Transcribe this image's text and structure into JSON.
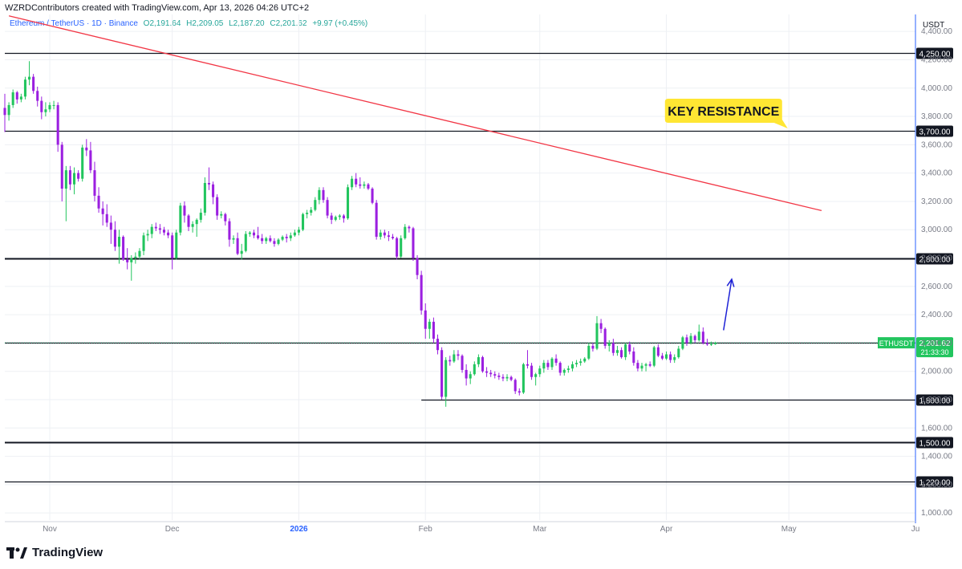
{
  "header": {
    "credit": "WZRDContributors created with TradingView.com, Apr 13, 2026 04:26 UTC+2"
  },
  "symbol": {
    "name": "Ethereum / TetherUS · 1D · Binance",
    "open": "O2,191.64",
    "high": "H2,209.05",
    "low": "L2,187.20",
    "close": "C2,201.62",
    "change": "+9.97 (+0.45%)"
  },
  "logo_text": "TradingView",
  "colors": {
    "bullish": "#22c55e",
    "bearish": "#9b1fe0",
    "trendline": "#f23645",
    "arrow": "#1e22d6",
    "callout_bg": "#ffe633",
    "price_tag": "#22c55e"
  },
  "chart_data": {
    "type": "candlestick",
    "y_unit": "USDT",
    "ylim": [
      950,
      4520
    ],
    "y_ticks": [
      "1,000.00",
      "1,200.00",
      "1,400.00",
      "1,600.00",
      "1,800.00",
      "2,000.00",
      "2,200.00",
      "2,400.00",
      "2,600.00",
      "2,800.00",
      "3,000.00",
      "3,200.00",
      "3,400.00",
      "3,600.00",
      "3,800.00",
      "4,000.00",
      "4,200.00",
      "4,400.00"
    ],
    "x_ticks": [
      {
        "label": "Nov",
        "date": "2025-11-01",
        "bold": false
      },
      {
        "label": "Dec",
        "date": "2025-12-01",
        "bold": false
      },
      {
        "label": "2026",
        "date": "2026-01-01",
        "bold": true
      },
      {
        "label": "Feb",
        "date": "2026-02-01",
        "bold": false
      },
      {
        "label": "Mar",
        "date": "2026-03-01",
        "bold": false
      },
      {
        "label": "Apr",
        "date": "2026-04-01",
        "bold": false
      },
      {
        "label": "May",
        "date": "2026-05-01",
        "bold": false
      },
      {
        "label": "Ju",
        "date": "2026-06-01",
        "bold": false
      }
    ],
    "x_range": [
      "2025-10-21",
      "2026-06-01"
    ],
    "levels": [
      {
        "value": 4250,
        "label": "4,250.00",
        "start": "2025-10-21"
      },
      {
        "value": 3700,
        "label": "3,700.00",
        "start": "2025-10-21"
      },
      {
        "value": 2800,
        "label": "2,800.00",
        "start": "2025-10-21"
      },
      {
        "value": 2200,
        "label": "2,200.00",
        "start": "2025-10-21"
      },
      {
        "value": 1800,
        "label": "1,800.00",
        "start": "2026-01-31"
      },
      {
        "value": 1500,
        "label": "1,500.00",
        "start": "2025-10-21"
      },
      {
        "value": 1220,
        "label": "1,220.00",
        "start": "2025-10-21"
      }
    ],
    "trendline": {
      "from": {
        "date": "2025-10-22",
        "value": 4510
      },
      "to": {
        "date": "2026-05-09",
        "value": 3135
      }
    },
    "arrow": {
      "from": {
        "date": "2026-04-15",
        "value": 2290
      },
      "to": {
        "date": "2026-04-17",
        "value": 2650
      }
    },
    "annotation": {
      "text": "KEY RESISTANCE",
      "date": "2026-04-15",
      "value": 3840
    },
    "last_price": {
      "symbol": "ETHUSDT",
      "price": "2,201.62",
      "countdown": "21:33:30",
      "value": 2201.62
    },
    "candles": [
      [
        "2025-10-21",
        3860,
        3960,
        3690,
        3810
      ],
      [
        "2025-10-22",
        3810,
        3900,
        3770,
        3880
      ],
      [
        "2025-10-23",
        3880,
        3990,
        3860,
        3970
      ],
      [
        "2025-10-24",
        3970,
        3980,
        3890,
        3920
      ],
      [
        "2025-10-25",
        3920,
        3960,
        3900,
        3940
      ],
      [
        "2025-10-26",
        3940,
        4080,
        3920,
        4060
      ],
      [
        "2025-10-27",
        4060,
        4190,
        4020,
        4080
      ],
      [
        "2025-10-28",
        4080,
        4100,
        3960,
        3980
      ],
      [
        "2025-10-29",
        3980,
        4010,
        3870,
        3910
      ],
      [
        "2025-10-30",
        3910,
        3940,
        3780,
        3830
      ],
      [
        "2025-10-31",
        3830,
        3900,
        3800,
        3850
      ],
      [
        "2025-11-01",
        3850,
        3900,
        3830,
        3880
      ],
      [
        "2025-11-02",
        3880,
        3910,
        3850,
        3880
      ],
      [
        "2025-11-03",
        3880,
        3900,
        3550,
        3600
      ],
      [
        "2025-11-04",
        3600,
        3620,
        3200,
        3290
      ],
      [
        "2025-11-05",
        3290,
        3450,
        3060,
        3420
      ],
      [
        "2025-11-06",
        3420,
        3450,
        3280,
        3320
      ],
      [
        "2025-11-07",
        3320,
        3440,
        3250,
        3400
      ],
      [
        "2025-11-08",
        3400,
        3420,
        3340,
        3360
      ],
      [
        "2025-11-09",
        3360,
        3600,
        3340,
        3580
      ],
      [
        "2025-11-10",
        3580,
        3640,
        3520,
        3560
      ],
      [
        "2025-11-11",
        3560,
        3620,
        3400,
        3420
      ],
      [
        "2025-11-12",
        3420,
        3480,
        3200,
        3240
      ],
      [
        "2025-11-13",
        3240,
        3300,
        3120,
        3150
      ],
      [
        "2025-11-14",
        3150,
        3200,
        3030,
        3110
      ],
      [
        "2025-11-15",
        3110,
        3180,
        3020,
        3050
      ],
      [
        "2025-11-16",
        3050,
        3100,
        2900,
        3000
      ],
      [
        "2025-11-17",
        3000,
        3060,
        2850,
        2880
      ],
      [
        "2025-11-18",
        2880,
        3000,
        2760,
        2950
      ],
      [
        "2025-11-19",
        2950,
        2960,
        2780,
        2790
      ],
      [
        "2025-11-20",
        2790,
        2870,
        2720,
        2770
      ],
      [
        "2025-11-21",
        2770,
        2820,
        2640,
        2800
      ],
      [
        "2025-11-22",
        2800,
        2840,
        2760,
        2810
      ],
      [
        "2025-11-23",
        2810,
        2870,
        2790,
        2850
      ],
      [
        "2025-11-24",
        2850,
        2980,
        2820,
        2960
      ],
      [
        "2025-11-25",
        2960,
        3000,
        2920,
        2970
      ],
      [
        "2025-11-26",
        2970,
        3040,
        2940,
        3020
      ],
      [
        "2025-11-27",
        3020,
        3050,
        2990,
        3010
      ],
      [
        "2025-11-28",
        3010,
        3040,
        2970,
        3000
      ],
      [
        "2025-11-29",
        3000,
        3020,
        2960,
        2980
      ],
      [
        "2025-11-30",
        2980,
        3000,
        2940,
        2960
      ],
      [
        "2025-12-01",
        2960,
        2980,
        2720,
        2800
      ],
      [
        "2025-12-02",
        2800,
        3000,
        2790,
        2980
      ],
      [
        "2025-12-03",
        2980,
        3190,
        2960,
        3170
      ],
      [
        "2025-12-04",
        3170,
        3200,
        3050,
        3100
      ],
      [
        "2025-12-05",
        3100,
        3110,
        2990,
        3020
      ],
      [
        "2025-12-06",
        3020,
        3060,
        2980,
        3040
      ],
      [
        "2025-12-07",
        3040,
        3080,
        2950,
        3070
      ],
      [
        "2025-12-08",
        3070,
        3150,
        3050,
        3120
      ],
      [
        "2025-12-09",
        3120,
        3370,
        3100,
        3330
      ],
      [
        "2025-12-10",
        3330,
        3440,
        3280,
        3320
      ],
      [
        "2025-12-11",
        3320,
        3340,
        3180,
        3230
      ],
      [
        "2025-12-12",
        3230,
        3250,
        3070,
        3100
      ],
      [
        "2025-12-13",
        3100,
        3130,
        3080,
        3110
      ],
      [
        "2025-12-14",
        3110,
        3120,
        3030,
        3060
      ],
      [
        "2025-12-15",
        3060,
        3080,
        2880,
        2930
      ],
      [
        "2025-12-16",
        2930,
        2960,
        2900,
        2940
      ],
      [
        "2025-12-17",
        2940,
        2980,
        2820,
        2830
      ],
      [
        "2025-12-18",
        2830,
        2900,
        2790,
        2850
      ],
      [
        "2025-12-19",
        2850,
        2990,
        2840,
        2970
      ],
      [
        "2025-12-20",
        2970,
        2990,
        2950,
        2980
      ],
      [
        "2025-12-21",
        2980,
        3000,
        2940,
        2960
      ],
      [
        "2025-12-22",
        2960,
        3020,
        2930,
        2940
      ],
      [
        "2025-12-23",
        2940,
        2970,
        2900,
        2920
      ],
      [
        "2025-12-24",
        2920,
        2950,
        2900,
        2940
      ],
      [
        "2025-12-25",
        2940,
        2960,
        2910,
        2920
      ],
      [
        "2025-12-26",
        2920,
        2940,
        2880,
        2900
      ],
      [
        "2025-12-27",
        2900,
        2940,
        2890,
        2930
      ],
      [
        "2025-12-28",
        2930,
        2960,
        2920,
        2950
      ],
      [
        "2025-12-29",
        2950,
        2970,
        2910,
        2940
      ],
      [
        "2025-12-30",
        2940,
        2980,
        2920,
        2960
      ],
      [
        "2025-12-31",
        2960,
        3000,
        2950,
        2980
      ],
      [
        "2026-01-01",
        2980,
        3020,
        2960,
        3000
      ],
      [
        "2026-01-02",
        3000,
        3120,
        2990,
        3110
      ],
      [
        "2026-01-03",
        3110,
        3140,
        3080,
        3120
      ],
      [
        "2026-01-04",
        3120,
        3160,
        3100,
        3140
      ],
      [
        "2026-01-05",
        3140,
        3230,
        3130,
        3210
      ],
      [
        "2026-01-06",
        3210,
        3300,
        3180,
        3280
      ],
      [
        "2026-01-07",
        3280,
        3300,
        3190,
        3210
      ],
      [
        "2026-01-08",
        3210,
        3230,
        3080,
        3100
      ],
      [
        "2026-01-09",
        3100,
        3120,
        3040,
        3070
      ],
      [
        "2026-01-10",
        3070,
        3100,
        3060,
        3090
      ],
      [
        "2026-01-11",
        3090,
        3110,
        3070,
        3100
      ],
      [
        "2026-01-12",
        3100,
        3110,
        3050,
        3080
      ],
      [
        "2026-01-13",
        3080,
        3320,
        3070,
        3300
      ],
      [
        "2026-01-14",
        3300,
        3380,
        3280,
        3360
      ],
      [
        "2026-01-15",
        3360,
        3400,
        3300,
        3320
      ],
      [
        "2026-01-16",
        3320,
        3370,
        3290,
        3310
      ],
      [
        "2026-01-17",
        3310,
        3340,
        3290,
        3320
      ],
      [
        "2026-01-18",
        3320,
        3330,
        3280,
        3290
      ],
      [
        "2026-01-19",
        3290,
        3300,
        3180,
        3190
      ],
      [
        "2026-01-20",
        3190,
        3210,
        2930,
        2950
      ],
      [
        "2026-01-21",
        2950,
        3000,
        2930,
        2980
      ],
      [
        "2026-01-22",
        2980,
        3000,
        2940,
        2960
      ],
      [
        "2026-01-23",
        2960,
        2990,
        2920,
        2950
      ],
      [
        "2026-01-24",
        2950,
        2970,
        2930,
        2940
      ],
      [
        "2026-01-25",
        2940,
        2950,
        2790,
        2810
      ],
      [
        "2026-01-26",
        2810,
        2960,
        2800,
        2940
      ],
      [
        "2026-01-27",
        2940,
        3040,
        2930,
        3020
      ],
      [
        "2026-01-28",
        3020,
        3030,
        2980,
        3010
      ],
      [
        "2026-01-29",
        3010,
        3020,
        2780,
        2800
      ],
      [
        "2026-01-30",
        2800,
        2820,
        2650,
        2680
      ],
      [
        "2026-01-31",
        2680,
        2710,
        2400,
        2430
      ],
      [
        "2026-02-01",
        2430,
        2480,
        2230,
        2300
      ],
      [
        "2026-02-02",
        2300,
        2370,
        2230,
        2350
      ],
      [
        "2026-02-03",
        2350,
        2380,
        2200,
        2230
      ],
      [
        "2026-02-04",
        2230,
        2260,
        2120,
        2150
      ],
      [
        "2026-02-05",
        2150,
        2170,
        1800,
        1820
      ],
      [
        "2026-02-06",
        1820,
        2100,
        1750,
        2080
      ],
      [
        "2026-02-07",
        2080,
        2110,
        2040,
        2070
      ],
      [
        "2026-02-08",
        2070,
        2150,
        2060,
        2120
      ],
      [
        "2026-02-09",
        2120,
        2150,
        2080,
        2110
      ],
      [
        "2026-02-10",
        2110,
        2120,
        1990,
        2010
      ],
      [
        "2026-02-11",
        2010,
        2050,
        1900,
        1950
      ],
      [
        "2026-02-12",
        1950,
        2000,
        1910,
        1980
      ],
      [
        "2026-02-13",
        1980,
        2070,
        1970,
        2050
      ],
      [
        "2026-02-14",
        2050,
        2120,
        2030,
        2100
      ],
      [
        "2026-02-15",
        2100,
        2110,
        1990,
        2000
      ],
      [
        "2026-02-16",
        2000,
        2030,
        1960,
        1990
      ],
      [
        "2026-02-17",
        1990,
        2010,
        1960,
        1980
      ],
      [
        "2026-02-18",
        1980,
        2000,
        1950,
        1970
      ],
      [
        "2026-02-19",
        1970,
        1990,
        1940,
        1960
      ],
      [
        "2026-02-20",
        1960,
        1980,
        1930,
        1950
      ],
      [
        "2026-02-21",
        1950,
        1980,
        1930,
        1960
      ],
      [
        "2026-02-22",
        1960,
        1970,
        1930,
        1940
      ],
      [
        "2026-02-23",
        1940,
        1950,
        1840,
        1860
      ],
      [
        "2026-02-24",
        1860,
        1880,
        1830,
        1850
      ],
      [
        "2026-02-25",
        1850,
        2060,
        1840,
        2050
      ],
      [
        "2026-02-26",
        2050,
        2150,
        2020,
        2040
      ],
      [
        "2026-02-27",
        2040,
        2060,
        1940,
        1960
      ],
      [
        "2026-02-28",
        1960,
        1990,
        1900,
        1980
      ],
      [
        "2026-03-01",
        1980,
        2040,
        1960,
        2020
      ],
      [
        "2026-03-02",
        2020,
        2080,
        1990,
        2060
      ],
      [
        "2026-03-03",
        2060,
        2080,
        2010,
        2030
      ],
      [
        "2026-03-04",
        2030,
        2100,
        2010,
        2090
      ],
      [
        "2026-03-05",
        2090,
        2120,
        2040,
        2060
      ],
      [
        "2026-03-06",
        2060,
        2070,
        1970,
        1990
      ],
      [
        "2026-03-07",
        1990,
        2020,
        1970,
        2010
      ],
      [
        "2026-03-08",
        2010,
        2040,
        1990,
        2020
      ],
      [
        "2026-03-09",
        2020,
        2070,
        2000,
        2050
      ],
      [
        "2026-03-10",
        2050,
        2080,
        2030,
        2060
      ],
      [
        "2026-03-11",
        2060,
        2090,
        2040,
        2070
      ],
      [
        "2026-03-12",
        2070,
        2100,
        2060,
        2090
      ],
      [
        "2026-03-13",
        2090,
        2200,
        2080,
        2180
      ],
      [
        "2026-03-14",
        2180,
        2200,
        2140,
        2160
      ],
      [
        "2026-03-15",
        2160,
        2390,
        2150,
        2340
      ],
      [
        "2026-03-16",
        2340,
        2370,
        2270,
        2300
      ],
      [
        "2026-03-17",
        2300,
        2310,
        2160,
        2180
      ],
      [
        "2026-03-18",
        2180,
        2220,
        2140,
        2200
      ],
      [
        "2026-03-19",
        2200,
        2230,
        2110,
        2130
      ],
      [
        "2026-03-20",
        2130,
        2180,
        2110,
        2150
      ],
      [
        "2026-03-21",
        2150,
        2170,
        2090,
        2100
      ],
      [
        "2026-03-22",
        2100,
        2200,
        2080,
        2190
      ],
      [
        "2026-03-23",
        2190,
        2210,
        2120,
        2140
      ],
      [
        "2026-03-24",
        2140,
        2170,
        2040,
        2060
      ],
      [
        "2026-03-25",
        2060,
        2080,
        2000,
        2020
      ],
      [
        "2026-03-26",
        2020,
        2060,
        2000,
        2040
      ],
      [
        "2026-03-27",
        2040,
        2060,
        2000,
        2050
      ],
      [
        "2026-03-28",
        2050,
        2070,
        2030,
        2040
      ],
      [
        "2026-03-29",
        2040,
        2180,
        2030,
        2170
      ],
      [
        "2026-03-30",
        2170,
        2190,
        2100,
        2110
      ],
      [
        "2026-03-31",
        2110,
        2130,
        2080,
        2090
      ],
      [
        "2026-04-01",
        2090,
        2140,
        2080,
        2120
      ],
      [
        "2026-04-02",
        2120,
        2140,
        2060,
        2080
      ],
      [
        "2026-04-03",
        2080,
        2120,
        2060,
        2100
      ],
      [
        "2026-04-04",
        2100,
        2180,
        2090,
        2160
      ],
      [
        "2026-04-05",
        2160,
        2250,
        2150,
        2240
      ],
      [
        "2026-04-06",
        2240,
        2260,
        2180,
        2200
      ],
      [
        "2026-04-07",
        2200,
        2270,
        2190,
        2250
      ],
      [
        "2026-04-08",
        2250,
        2260,
        2200,
        2220
      ],
      [
        "2026-04-09",
        2220,
        2330,
        2210,
        2280
      ],
      [
        "2026-04-10",
        2280,
        2310,
        2190,
        2200
      ],
      [
        "2026-04-11",
        2200,
        2230,
        2180,
        2190
      ],
      [
        "2026-04-12",
        2190,
        2210,
        2180,
        2192
      ],
      [
        "2026-04-13",
        2191.64,
        2209.05,
        2187.2,
        2201.62
      ]
    ]
  }
}
